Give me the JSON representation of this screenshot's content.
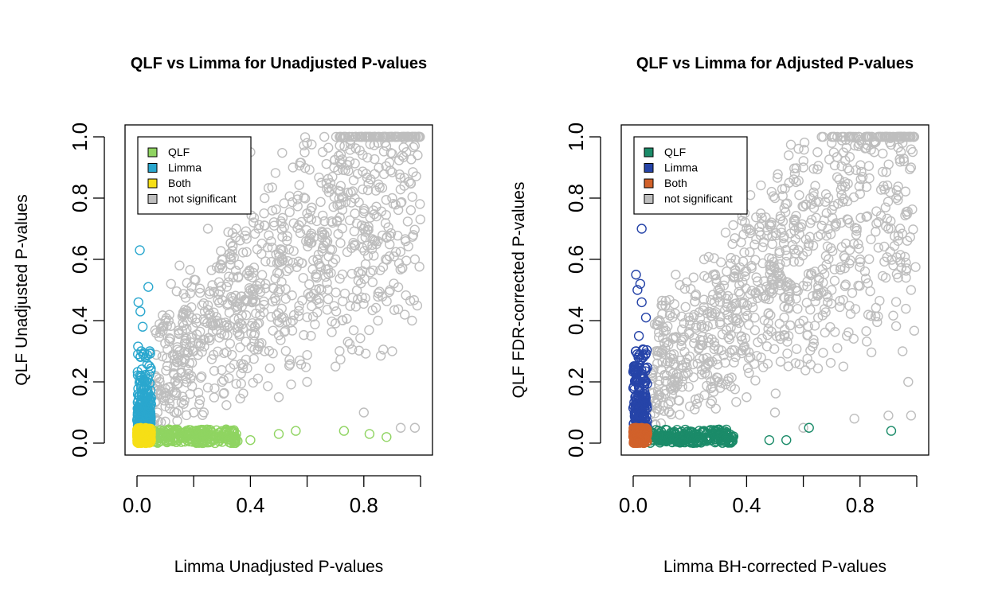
{
  "chart_data": [
    {
      "type": "scatter",
      "title": "QLF vs Limma for Unadjusted P-values",
      "xlabel": "Limma Unadjusted P-values",
      "ylabel": "QLF Unadjusted P-values",
      "xlim": [
        0,
        1
      ],
      "ylim": [
        0,
        1
      ],
      "x_ticks": [
        0,
        0.2,
        0.4,
        0.6,
        0.8,
        1.0
      ],
      "x_tick_labels": [
        "0.0",
        "",
        "0.4",
        "",
        "0.8",
        ""
      ],
      "y_ticks": [
        0,
        0.2,
        0.4,
        0.6,
        0.8,
        1.0
      ],
      "y_tick_labels": [
        "0.0",
        "0.2",
        "0.4",
        "0.6",
        "0.8",
        "1.0"
      ],
      "grid": false,
      "legend_position": "top-left",
      "legend": [
        {
          "label": "QLF",
          "color": "#8fd461"
        },
        {
          "label": "Limma",
          "color": "#2aa7ce"
        },
        {
          "label": "Both",
          "color": "#f6df16"
        },
        {
          "label": "not significant",
          "color": "#bebebe"
        }
      ],
      "series": [
        {
          "name": "not significant",
          "color": "#bebebe",
          "points": [
            [
              0.1,
              0.4
            ],
            [
              0.12,
              0.52
            ],
            [
              0.15,
              0.58
            ],
            [
              0.2,
              0.3
            ],
            [
              0.25,
              0.45
            ],
            [
              0.3,
              0.6
            ],
            [
              0.35,
              0.7
            ],
            [
              0.4,
              0.5
            ],
            [
              0.45,
              0.8
            ],
            [
              0.5,
              0.62
            ],
            [
              0.55,
              0.9
            ],
            [
              0.6,
              0.75
            ],
            [
              0.65,
              0.85
            ],
            [
              0.7,
              0.6
            ],
            [
              0.75,
              0.92
            ],
            [
              0.8,
              0.7
            ],
            [
              0.85,
              0.98
            ],
            [
              0.9,
              0.8
            ],
            [
              0.95,
              0.95
            ],
            [
              0.98,
              0.6
            ],
            [
              0.5,
              0.15
            ],
            [
              0.6,
              0.2
            ],
            [
              0.7,
              0.25
            ],
            [
              0.8,
              0.1
            ],
            [
              0.9,
              0.3
            ],
            [
              0.98,
              0.05
            ],
            [
              0.93,
              0.05
            ],
            [
              0.85,
              0.4
            ],
            [
              0.97,
              0.4
            ],
            [
              0.3,
              0.2
            ],
            [
              0.45,
              0.3
            ],
            [
              0.65,
              0.5
            ],
            [
              0.55,
              0.4
            ],
            [
              0.4,
              0.95
            ],
            [
              0.6,
              0.98
            ],
            [
              0.25,
              0.7
            ],
            [
              0.15,
              0.3
            ],
            [
              0.08,
              0.2
            ],
            [
              0.1,
              0.12
            ],
            [
              0.2,
              0.1
            ]
          ]
        },
        {
          "name": "QLF",
          "color": "#8fd461",
          "points": [
            [
              0.06,
              0.02
            ],
            [
              0.1,
              0.01
            ],
            [
              0.15,
              0.03
            ],
            [
              0.2,
              0.02
            ],
            [
              0.25,
              0.04
            ],
            [
              0.3,
              0.02
            ],
            [
              0.35,
              0.03
            ],
            [
              0.4,
              0.01
            ],
            [
              0.5,
              0.03
            ],
            [
              0.56,
              0.04
            ],
            [
              0.73,
              0.04
            ],
            [
              0.82,
              0.03
            ],
            [
              0.88,
              0.02
            ]
          ]
        },
        {
          "name": "Limma",
          "color": "#2aa7ce",
          "points": [
            [
              0.01,
              0.63
            ],
            [
              0.04,
              0.51
            ],
            [
              0.005,
              0.46
            ],
            [
              0.012,
              0.43
            ],
            [
              0.02,
              0.38
            ],
            [
              0.015,
              0.3
            ],
            [
              0.03,
              0.28
            ],
            [
              0.01,
              0.22
            ],
            [
              0.025,
              0.18
            ],
            [
              0.005,
              0.14
            ],
            [
              0.04,
              0.1
            ],
            [
              0.02,
              0.07
            ],
            [
              0.045,
              0.3
            ],
            [
              0.035,
              0.2
            ]
          ]
        },
        {
          "name": "Both",
          "color": "#f6df16",
          "points": [
            [
              0.002,
              0.005
            ],
            [
              0.01,
              0.02
            ],
            [
              0.02,
              0.01
            ],
            [
              0.03,
              0.03
            ],
            [
              0.04,
              0.005
            ],
            [
              0.015,
              0.04
            ],
            [
              0.025,
              0.02
            ]
          ]
        }
      ]
    },
    {
      "type": "scatter",
      "title": "QLF vs Limma for Adjusted P-values",
      "xlabel": "Limma BH-corrected P-values",
      "ylabel": "QLF FDR-corrected P-values",
      "xlim": [
        0,
        1
      ],
      "ylim": [
        0,
        1
      ],
      "x_ticks": [
        0,
        0.2,
        0.4,
        0.6,
        0.8,
        1.0
      ],
      "x_tick_labels": [
        "0.0",
        "",
        "0.4",
        "",
        "0.8",
        ""
      ],
      "y_ticks": [
        0,
        0.2,
        0.4,
        0.6,
        0.8,
        1.0
      ],
      "y_tick_labels": [
        "0.0",
        "0.2",
        "0.4",
        "0.6",
        "0.8",
        "1.0"
      ],
      "grid": false,
      "legend_position": "top-left",
      "legend": [
        {
          "label": "QLF",
          "color": "#1b8b69"
        },
        {
          "label": "Limma",
          "color": "#2644a8"
        },
        {
          "label": "Both",
          "color": "#d1612a"
        },
        {
          "label": "not significant",
          "color": "#bebebe"
        }
      ],
      "series": [
        {
          "name": "not significant",
          "color": "#bebebe",
          "points": [
            [
              0.1,
              0.45
            ],
            [
              0.15,
              0.55
            ],
            [
              0.2,
              0.4
            ],
            [
              0.25,
              0.6
            ],
            [
              0.3,
              0.5
            ],
            [
              0.35,
              0.65
            ],
            [
              0.4,
              0.7
            ],
            [
              0.45,
              0.75
            ],
            [
              0.5,
              0.8
            ],
            [
              0.55,
              0.85
            ],
            [
              0.6,
              0.9
            ],
            [
              0.65,
              0.95
            ],
            [
              0.7,
              0.98
            ],
            [
              0.75,
              0.99
            ],
            [
              0.8,
              0.99
            ],
            [
              0.85,
              0.95
            ],
            [
              0.9,
              1.0
            ],
            [
              0.95,
              0.98
            ],
            [
              0.98,
              0.9
            ],
            [
              0.6,
              0.4
            ],
            [
              0.7,
              0.5
            ],
            [
              0.8,
              0.6
            ],
            [
              0.9,
              0.7
            ],
            [
              0.98,
              0.5
            ],
            [
              0.95,
              0.3
            ],
            [
              0.97,
              0.2
            ],
            [
              0.9,
              0.09
            ],
            [
              0.98,
              0.09
            ],
            [
              0.78,
              0.08
            ],
            [
              0.6,
              0.05
            ],
            [
              0.5,
              0.1
            ],
            [
              0.4,
              0.15
            ],
            [
              0.3,
              0.2
            ],
            [
              0.08,
              0.3
            ],
            [
              0.1,
              0.15
            ],
            [
              0.2,
              0.12
            ]
          ]
        },
        {
          "name": "QLF",
          "color": "#1b8b69",
          "points": [
            [
              0.06,
              0.02
            ],
            [
              0.1,
              0.01
            ],
            [
              0.15,
              0.03
            ],
            [
              0.2,
              0.02
            ],
            [
              0.25,
              0.04
            ],
            [
              0.3,
              0.03
            ],
            [
              0.48,
              0.01
            ],
            [
              0.54,
              0.01
            ],
            [
              0.62,
              0.05
            ],
            [
              0.91,
              0.04
            ]
          ]
        },
        {
          "name": "Limma",
          "color": "#2644a8",
          "points": [
            [
              0.03,
              0.7
            ],
            [
              0.01,
              0.55
            ],
            [
              0.025,
              0.52
            ],
            [
              0.015,
              0.5
            ],
            [
              0.03,
              0.46
            ],
            [
              0.045,
              0.41
            ],
            [
              0.02,
              0.35
            ],
            [
              0.01,
              0.3
            ],
            [
              0.035,
              0.28
            ],
            [
              0.005,
              0.25
            ],
            [
              0.025,
              0.2
            ],
            [
              0.04,
              0.15
            ],
            [
              0.015,
              0.12
            ],
            [
              0.03,
              0.08
            ]
          ]
        },
        {
          "name": "Both",
          "color": "#d1612a",
          "points": [
            [
              0.002,
              0.005
            ],
            [
              0.01,
              0.02
            ],
            [
              0.02,
              0.01
            ],
            [
              0.03,
              0.03
            ],
            [
              0.04,
              0.005
            ],
            [
              0.015,
              0.04
            ],
            [
              0.025,
              0.02
            ],
            [
              0.045,
              0.015
            ]
          ]
        }
      ]
    }
  ]
}
